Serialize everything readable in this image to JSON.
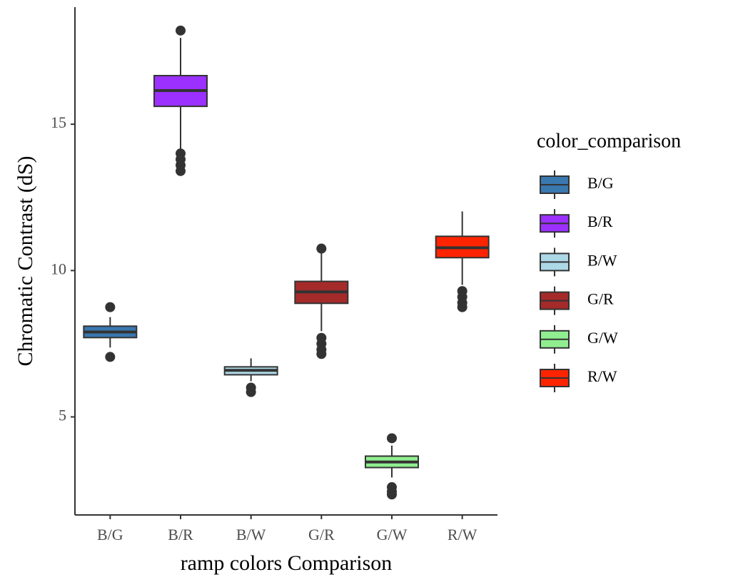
{
  "chart_data": {
    "type": "boxplot",
    "x_label": "ramp colors Comparison",
    "y_label": "Chromatic Contrast (dS)",
    "legend_title": "color_comparison",
    "legend_position": "right",
    "grid": false,
    "categories": [
      "B/G",
      "B/R",
      "B/W",
      "G/R",
      "G/W",
      "R/W"
    ],
    "colors": [
      "#3a78b0",
      "#9b30ff",
      "#add8e6",
      "#a52a2a",
      "#90ee90",
      "#ff2400"
    ],
    "boxes": [
      {
        "whisker_low": 7.37,
        "q1": 7.71,
        "median": 7.9,
        "q3": 8.1,
        "whisker_high": 8.41,
        "outliers": [
          8.75,
          7.05
        ]
      },
      {
        "whisker_low": 14.15,
        "q1": 15.61,
        "median": 16.15,
        "q3": 16.66,
        "whisker_high": 17.95,
        "outliers": [
          18.2,
          14.0,
          13.8,
          13.6,
          13.4
        ]
      },
      {
        "whisker_low": 6.22,
        "q1": 6.44,
        "median": 6.59,
        "q3": 6.71,
        "whisker_high": 7.0,
        "outliers": [
          6.0,
          5.85
        ]
      },
      {
        "whisker_low": 7.93,
        "q1": 8.88,
        "median": 9.27,
        "q3": 9.63,
        "whisker_high": 10.6,
        "outliers": [
          10.75,
          7.7,
          7.5,
          7.3,
          7.15
        ]
      },
      {
        "whisker_low": 2.93,
        "q1": 3.27,
        "median": 3.46,
        "q3": 3.66,
        "whisker_high": 4.02,
        "outliers": [
          4.27,
          2.6,
          2.45,
          2.35
        ]
      },
      {
        "whisker_low": 9.51,
        "q1": 10.44,
        "median": 10.78,
        "q3": 11.17,
        "whisker_high": 12.02,
        "outliers": [
          9.3,
          9.1,
          8.9,
          8.75
        ]
      }
    ],
    "ylim": [
      1.65,
      19.0
    ],
    "yticks": [
      5,
      10,
      15
    ]
  }
}
